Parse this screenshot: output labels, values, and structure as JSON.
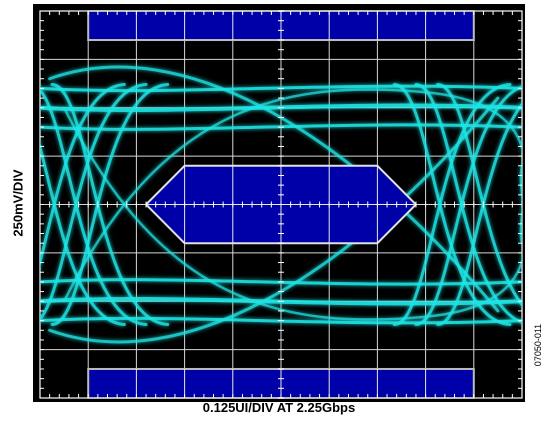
{
  "chart_data": {
    "type": "eye-diagram",
    "xlabel": "0.125UI/DIV AT 2.25Gbps",
    "ylabel": "250mV/DIV",
    "x_divisions": 10,
    "y_divisions": 8,
    "x_unit_per_div": "0.125UI",
    "y_unit_per_div": "250mV",
    "data_rate": "2.25Gbps",
    "mask_color": "#0000A8",
    "trace_color": "#1EE6E6",
    "background": "#000000",
    "grid": true,
    "eye_levels_mV": {
      "high_rails": [
        600,
        500,
        400
      ],
      "low_rails": [
        -400,
        -500,
        -600
      ]
    },
    "mask_regions": [
      {
        "name": "center-hexagon",
        "x_div": [
          2.2,
          7.8
        ],
        "y_mV": [
          -200,
          200
        ]
      },
      {
        "name": "top-bar",
        "x_div": [
          1,
          9
        ],
        "y_mV": [
          850,
          1000
        ]
      },
      {
        "name": "bottom-bar",
        "x_div": [
          1,
          9
        ],
        "y_mV": [
          -1000,
          -850
        ]
      }
    ]
  },
  "figure_code": "07050-011"
}
